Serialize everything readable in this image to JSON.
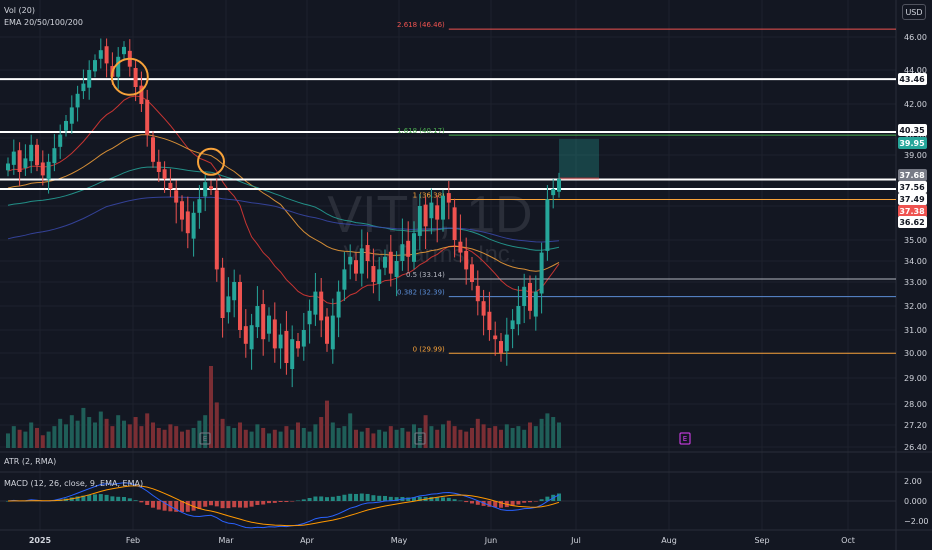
{
  "symbol": "VITL",
  "timeframe": "1D",
  "company": "Vital Farms, Inc.",
  "currency": "USD",
  "indicators": {
    "vol": "Vol (20)",
    "ema": "EMA 20/50/100/200",
    "atr": "ATR (2, RMA)",
    "macd": "MACD (12, 26, close, 9, EMA, EMA)"
  },
  "colors": {
    "bull": "#26a69a",
    "bear": "#ef5350",
    "ema20": "#e53935",
    "ema50": "#f7a23a",
    "ema100": "#26a69a",
    "ema200": "#3949ab",
    "macd": "#2962ff",
    "signal": "#ff9800",
    "circle": "#f7a23a"
  },
  "chart_data": {
    "type": "candlestick",
    "price_axis_ticks": [
      46.0,
      44.0,
      42.0,
      40.0,
      39.0,
      37.0,
      36.0,
      35.0,
      34.0,
      33.0,
      32.0,
      31.0,
      30.0,
      29.0,
      28.0,
      27.2,
      26.4
    ],
    "ylim": [
      26.4,
      46.6
    ],
    "x_ticks": [
      "2025",
      "Feb",
      "Mar",
      "Apr",
      "May",
      "Jun",
      "Jul",
      "Aug",
      "Sep",
      "Oct"
    ],
    "horizontal_levels": [
      43.46,
      40.35,
      37.56,
      37.0
    ],
    "fibonacci": [
      {
        "label": "2.618 (46.46)",
        "value": 46.46,
        "color": "#ef5350"
      },
      {
        "label": "1.618 (40.17)",
        "value": 40.17,
        "color": "#4caf50"
      },
      {
        "label": "1 (36.38)",
        "value": 36.38,
        "color": "#f7a23a"
      },
      {
        "label": "0.5 (33.14)",
        "value": 33.14,
        "color": "#b2b5be"
      },
      {
        "label": "0.382 (32.39)",
        "value": 32.39,
        "color": "#5b8dd6"
      },
      {
        "label": "0 (29.99)",
        "value": 29.99,
        "color": "#f7a23a"
      }
    ],
    "price_labels": [
      {
        "text": "43.46",
        "value": 43.46,
        "bg": "#ffffff",
        "fg": "#131722"
      },
      {
        "text": "40.35",
        "value": 40.35,
        "bg": "#ffffff",
        "fg": "#131722"
      },
      {
        "text": "39.95",
        "value": 39.95,
        "bg": "#26a69a",
        "fg": "#ffffff"
      },
      {
        "text": "37.68",
        "value": 37.68,
        "bg": "#787b86",
        "fg": "#ffffff"
      },
      {
        "text": "37.56",
        "value": 37.56,
        "bg": "#ffffff",
        "fg": "#131722"
      },
      {
        "text": "37.49",
        "value": 37.49,
        "bg": "#ffffff",
        "fg": "#131722"
      },
      {
        "text": "37.38",
        "value": 37.38,
        "bg": "#ef5350",
        "fg": "#ffffff"
      },
      {
        "text": "36.62",
        "value": 36.62,
        "bg": "#ffffff",
        "fg": "#131722"
      }
    ],
    "macd_axis_ticks": [
      2.0,
      0.0,
      -2.0
    ],
    "macd_axis_labels": [
      "2.00",
      "0.000",
      "−2.00"
    ],
    "closes": [
      38.5,
      39.2,
      38.0,
      38.8,
      39.6,
      38.4,
      37.8,
      38.6,
      39.4,
      40.2,
      41.0,
      41.8,
      42.6,
      43.2,
      44.0,
      44.6,
      45.2,
      44.4,
      43.6,
      44.8,
      45.4,
      44.2,
      43.0,
      42.0,
      40.2,
      38.6,
      38.0,
      37.6,
      37.0,
      36.2,
      35.6,
      35.2,
      35.8,
      36.4,
      37.4,
      37.0,
      33.6,
      31.5,
      32.4,
      33.0,
      31.0,
      30.4,
      31.2,
      32.0,
      30.6,
      31.6,
      30.2,
      30.8,
      29.6,
      30.6,
      30.2,
      31.0,
      31.8,
      32.6,
      31.4,
      30.4,
      31.6,
      32.6,
      33.6,
      34.2,
      33.4,
      34.6,
      34.0,
      33.0,
      33.6,
      34.2,
      33.4,
      34.0,
      34.8,
      34.2,
      35.2,
      36.0,
      35.4,
      36.2,
      35.6,
      36.6,
      36.2,
      35.0,
      34.4,
      33.6,
      33.0,
      32.2,
      31.6,
      31.0,
      30.6,
      30.0,
      30.8,
      31.4,
      32.0,
      32.8,
      31.8,
      32.6,
      34.4,
      36.4,
      37.0,
      37.6
    ],
    "volumes": [
      0.8,
      1.2,
      1.0,
      0.9,
      1.4,
      1.1,
      0.7,
      0.9,
      1.2,
      1.6,
      1.3,
      1.8,
      1.5,
      2.2,
      1.7,
      1.4,
      2.0,
      1.6,
      1.2,
      1.8,
      1.5,
      1.3,
      1.7,
      1.2,
      1.9,
      1.4,
      1.1,
      1.0,
      1.3,
      1.2,
      0.9,
      1.0,
      1.1,
      1.5,
      1.8,
      4.5,
      2.5,
      1.6,
      1.2,
      1.1,
      1.4,
      1.0,
      0.9,
      1.3,
      1.1,
      0.8,
      1.0,
      0.9,
      1.2,
      1.0,
      1.4,
      1.1,
      0.9,
      1.3,
      1.7,
      2.6,
      1.4,
      1.1,
      1.2,
      1.9,
      1.0,
      0.9,
      1.1,
      0.8,
      1.0,
      0.9,
      1.2,
      1.0,
      1.1,
      0.9,
      1.3,
      1.1,
      1.8,
      1.2,
      1.0,
      1.3,
      1.5,
      1.2,
      1.0,
      0.9,
      1.1,
      1.6,
      1.3,
      1.1,
      1.2,
      1.0,
      1.3,
      1.1,
      1.2,
      1.0,
      1.4,
      1.2,
      1.6,
      1.9,
      1.7,
      1.4
    ],
    "fib_zero_index": 85,
    "fib_top_index": 76,
    "circles": [
      {
        "index": 21,
        "value": 43.6
      },
      {
        "index": 35,
        "value": 38.6
      }
    ]
  }
}
